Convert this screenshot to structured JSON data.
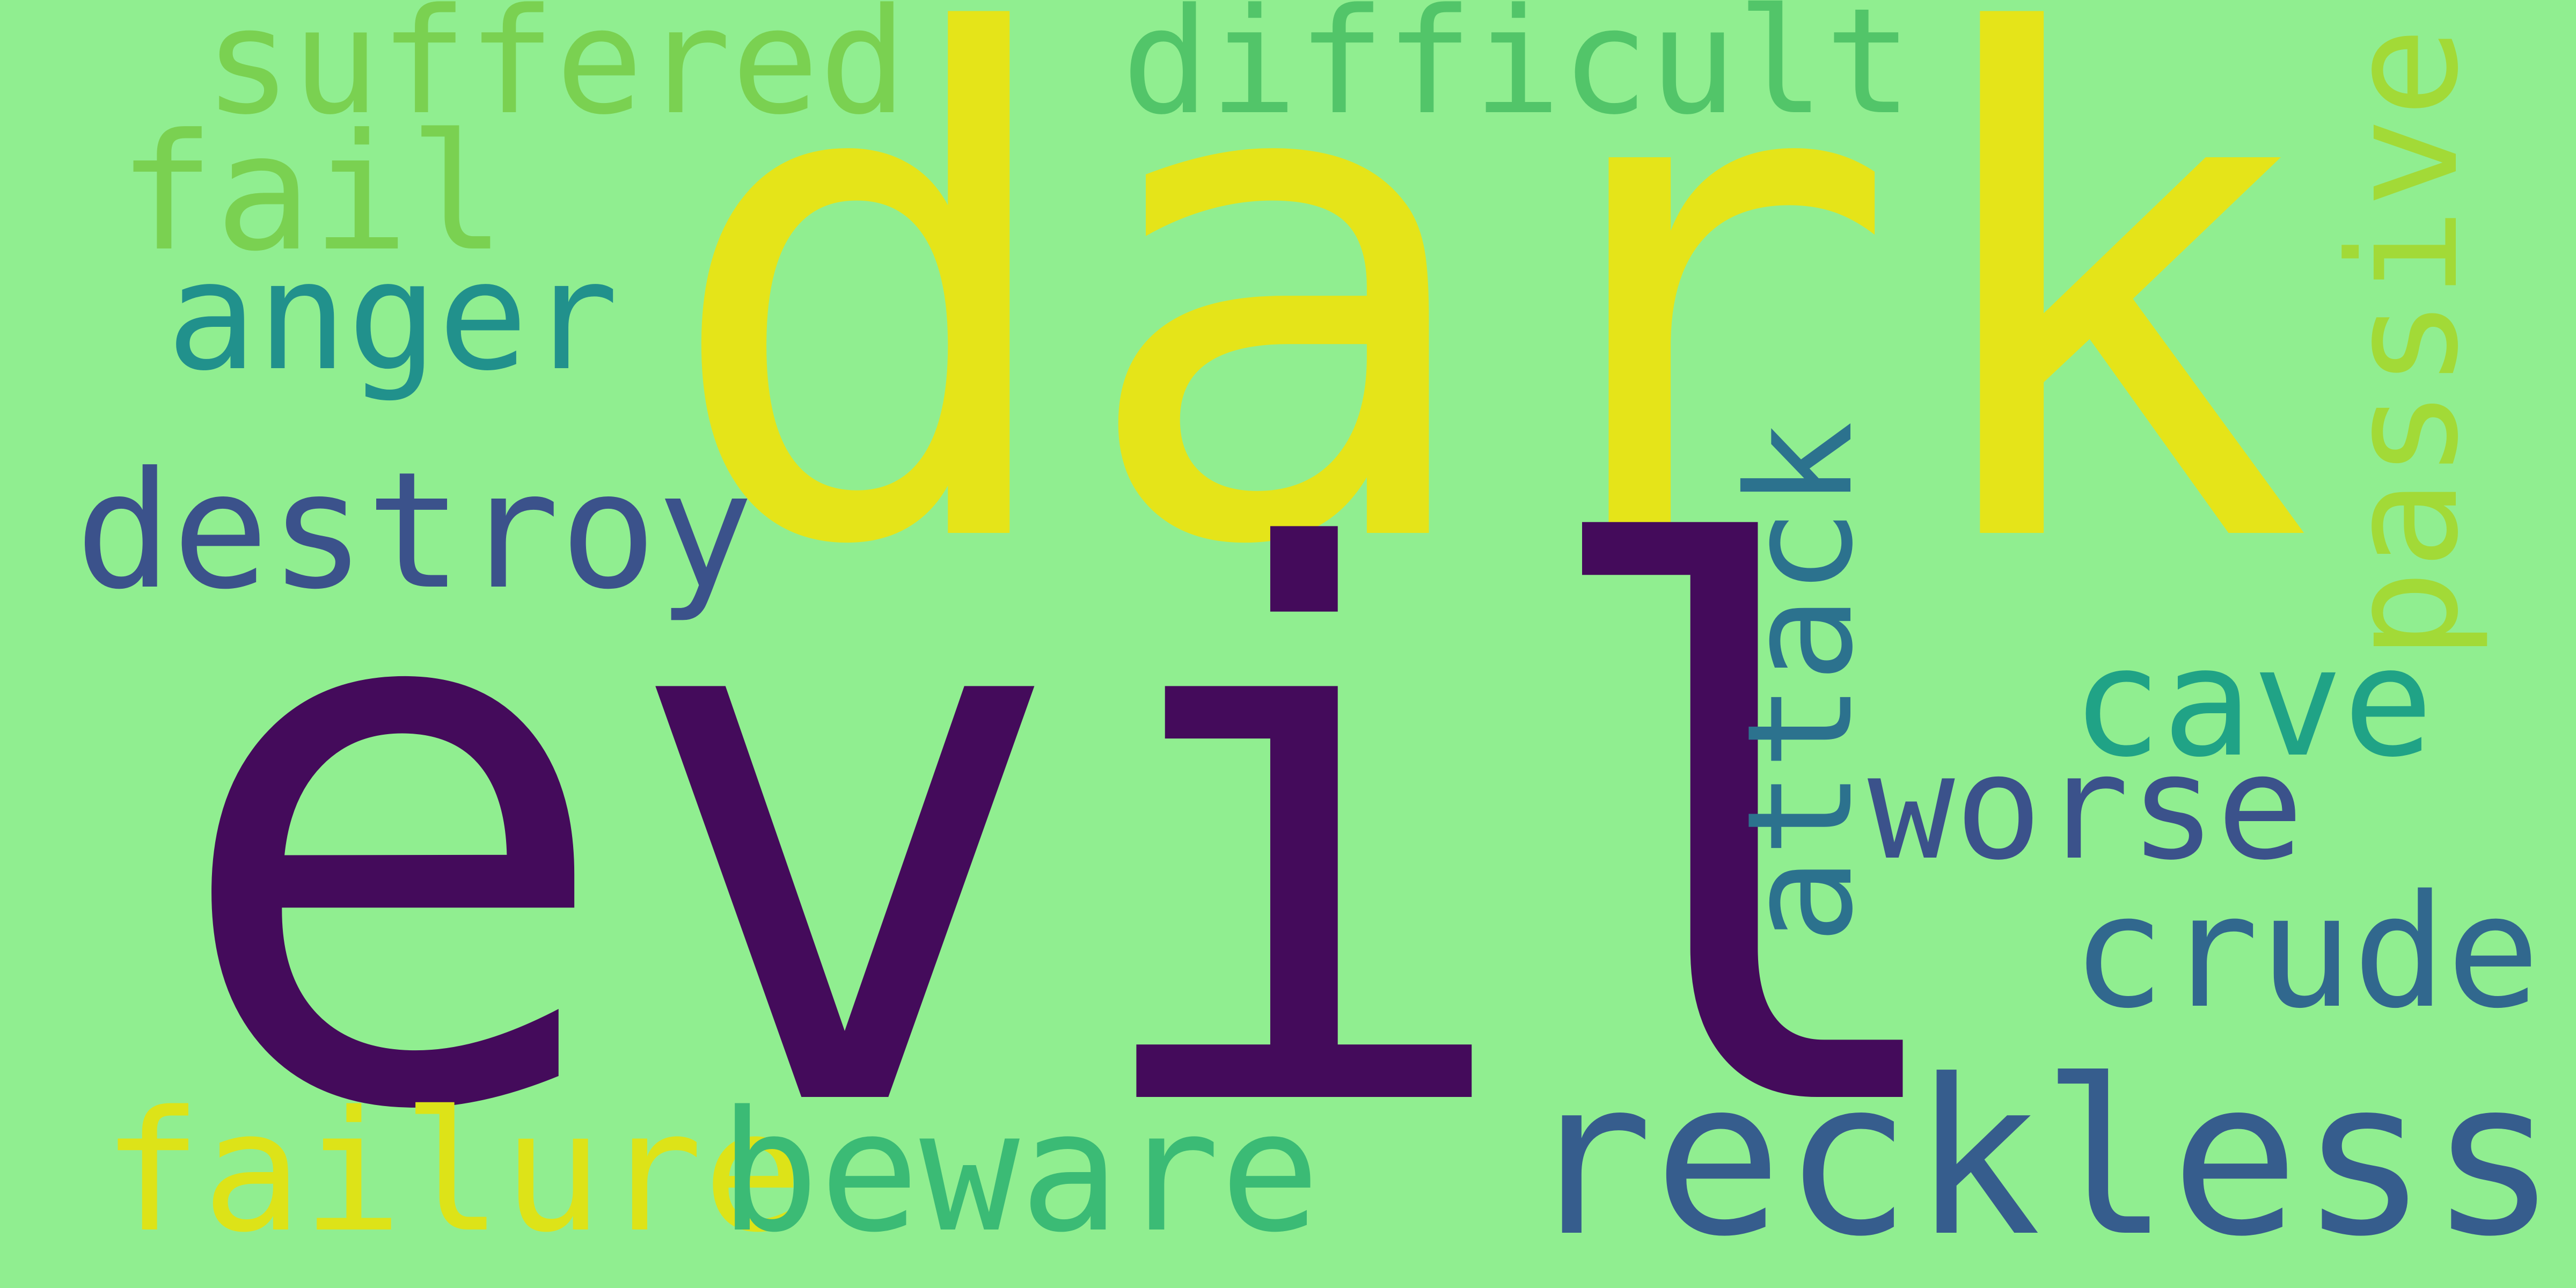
{
  "words": {
    "dark": {
      "text": "dark",
      "color": "#e5e419"
    },
    "evil": {
      "text": "evil",
      "color": "#440b5b"
    },
    "suffered": {
      "text": "suffered",
      "color": "#7ad151"
    },
    "difficult": {
      "text": "difficult",
      "color": "#52c569"
    },
    "fail": {
      "text": "fail",
      "color": "#7ad151"
    },
    "anger": {
      "text": "anger",
      "color": "#21918c"
    },
    "destroy": {
      "text": "destroy",
      "color": "#3b528b"
    },
    "passive": {
      "text": "passive",
      "color": "#a2da37"
    },
    "attack": {
      "text": "attack",
      "color": "#2c728e"
    },
    "cave": {
      "text": "cave",
      "color": "#20a386"
    },
    "worse": {
      "text": "worse",
      "color": "#3b528b"
    },
    "crude": {
      "text": "crude",
      "color": "#31688e"
    },
    "failure": {
      "text": "failure",
      "color": "#dde318"
    },
    "beware": {
      "text": "beware",
      "color": "#3bbb75"
    },
    "reckless": {
      "text": "reckless",
      "color": "#365d8d"
    }
  }
}
